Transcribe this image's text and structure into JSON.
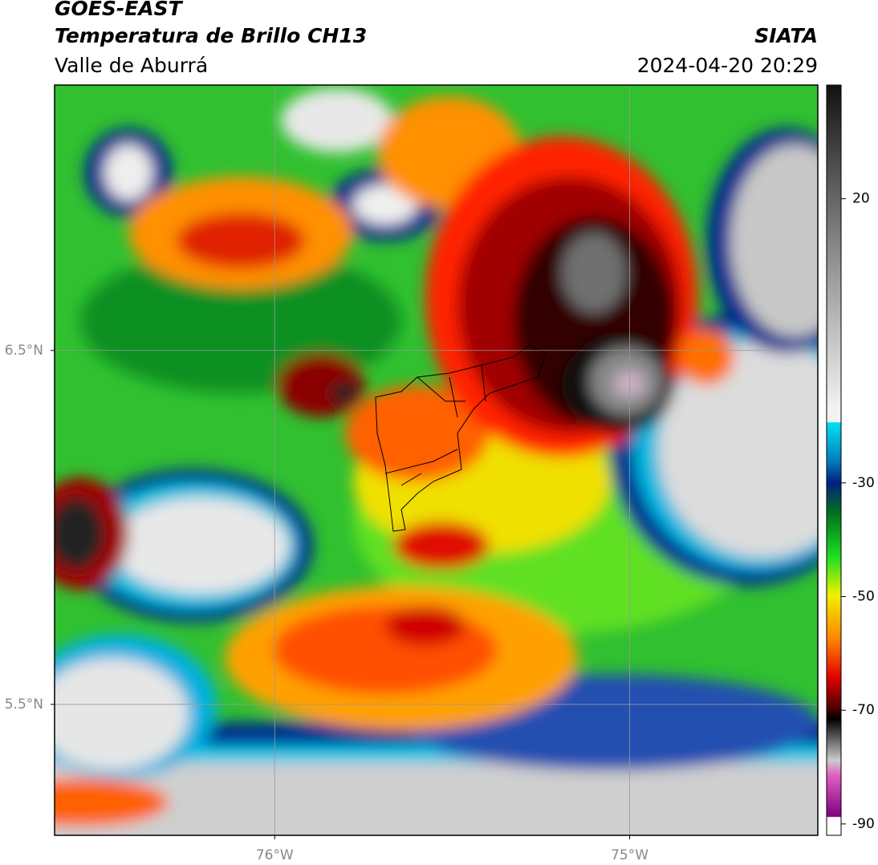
{
  "header": {
    "title": "GOES-EAST",
    "subtitle": "Temperatura de Brillo CH13",
    "region": "Valle de Aburrá",
    "source": "SIATA",
    "datetime": "2024-04-20 20:29"
  },
  "map": {
    "xlim": [
      -76.62,
      -74.47
    ],
    "ylim": [
      5.13,
      7.25
    ],
    "xticks": [
      {
        "value": -76,
        "label": "76°W"
      },
      {
        "value": -75,
        "label": "75°W"
      }
    ],
    "yticks": [
      {
        "value": 6.5,
        "label": "6.5°N"
      },
      {
        "value": 5.5,
        "label": "5.5°N"
      }
    ],
    "grid": true
  },
  "colorbar": {
    "lim": [
      -92,
      40
    ],
    "ticks": [
      20,
      -30,
      -50,
      -70,
      -90
    ]
  }
}
